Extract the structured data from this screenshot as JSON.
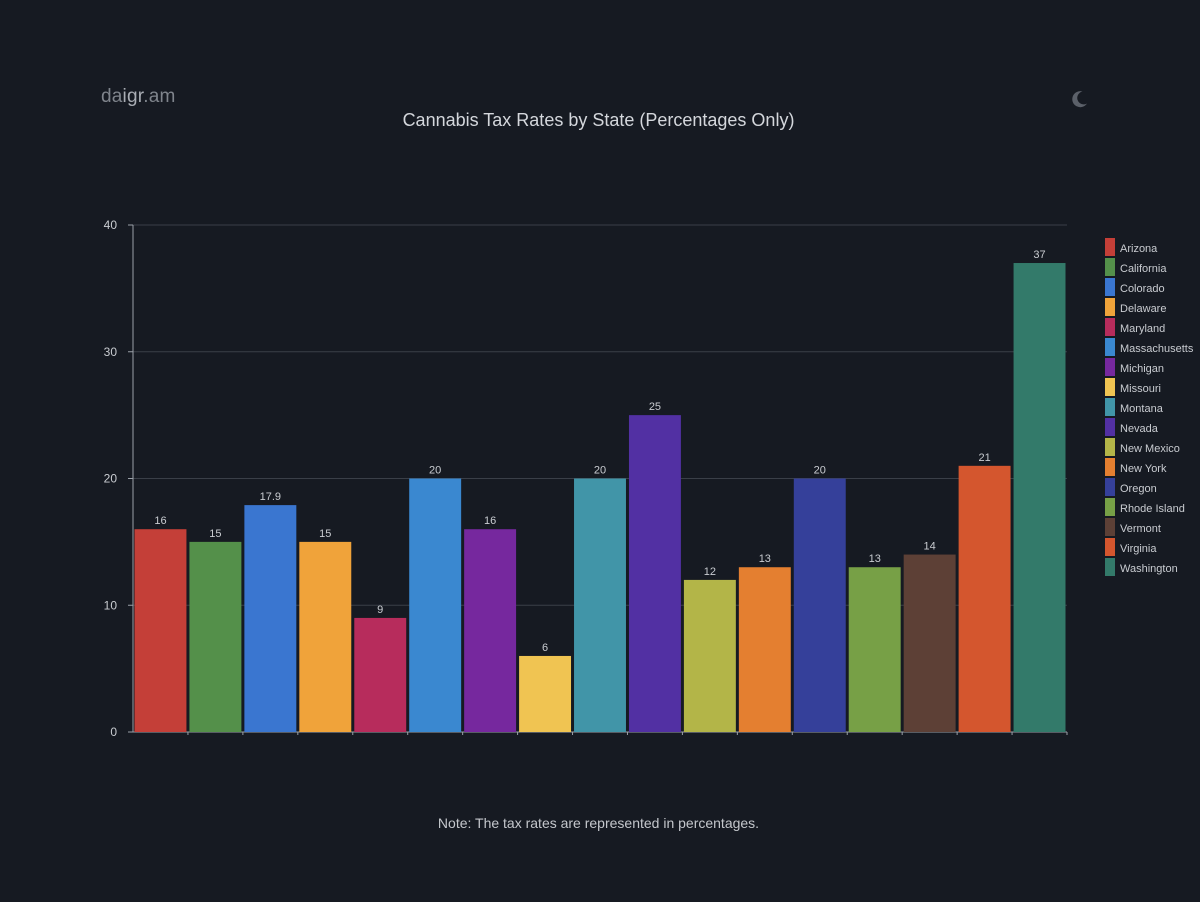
{
  "brand": {
    "logo_part1": "da",
    "logo_part2": "i",
    "logo_part3": "gr",
    "logo_part4": ".am"
  },
  "theme_toggle_icon": "moon-icon",
  "note": "Note: The tax rates are represented in percentages.",
  "chart_data": {
    "type": "bar",
    "title": "Cannabis Tax Rates by State (Percentages Only)",
    "xlabel": "",
    "ylabel": "",
    "ylim": [
      0,
      40
    ],
    "yticks": [
      0,
      10,
      20,
      30,
      40
    ],
    "grid": true,
    "legend_position": "right",
    "categories": [
      "Arizona",
      "California",
      "Colorado",
      "Delaware",
      "Maryland",
      "Massachusetts",
      "Michigan",
      "Missouri",
      "Montana",
      "Nevada",
      "New Mexico",
      "New York",
      "Oregon",
      "Rhode Island",
      "Vermont",
      "Virginia",
      "Washington"
    ],
    "values": [
      16,
      15,
      17.9,
      15,
      9,
      20,
      16,
      6,
      20,
      25,
      12,
      13,
      20,
      13,
      14,
      21,
      37
    ],
    "value_labels": [
      "16",
      "15",
      "17.9",
      "15",
      "9",
      "20",
      "16",
      "6",
      "20",
      "25",
      "12",
      "13",
      "20",
      "13",
      "14",
      "21",
      "37"
    ],
    "colors": [
      "#c43f38",
      "#54904a",
      "#3a76d0",
      "#f0a33a",
      "#b72c5c",
      "#3a88d0",
      "#76289e",
      "#f0c452",
      "#4195a8",
      "#5230a3",
      "#b3b548",
      "#e47f30",
      "#35409a",
      "#77a046",
      "#5d4036",
      "#d4562e",
      "#337a6a"
    ]
  }
}
